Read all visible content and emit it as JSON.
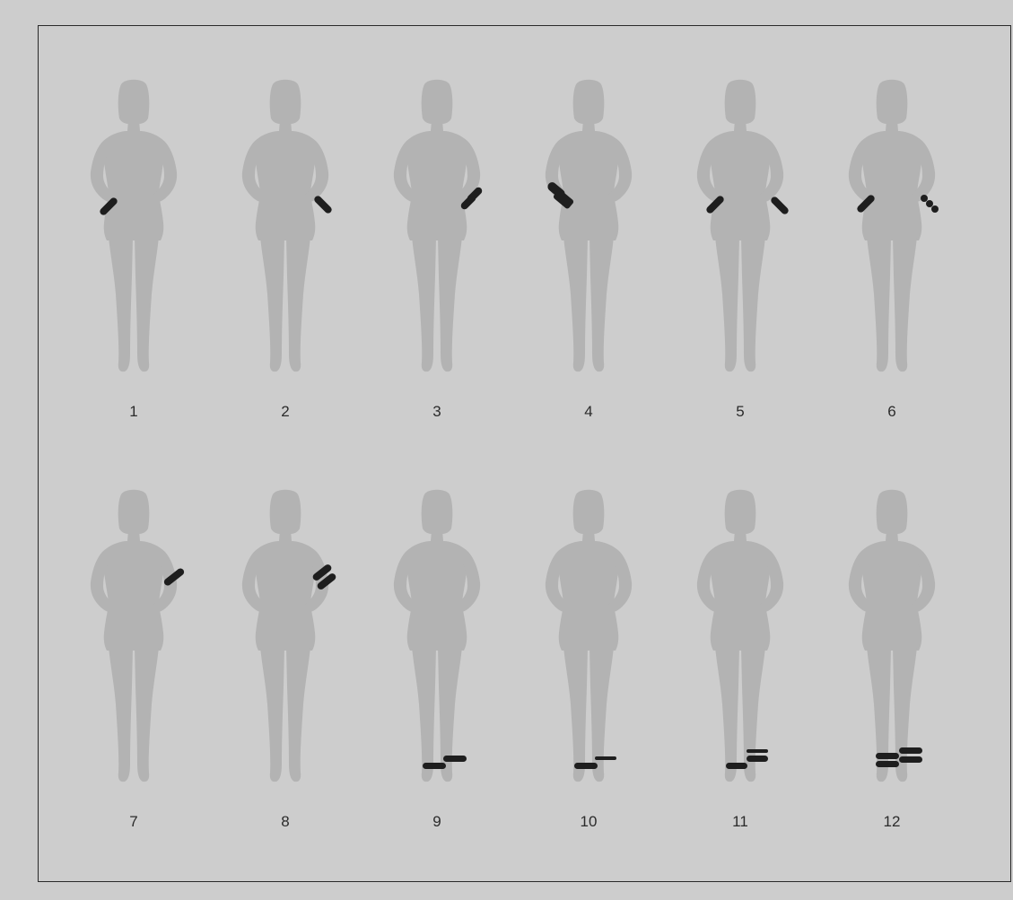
{
  "figures": [
    {
      "label": "1",
      "placement": "one band, right hip (viewer's left)"
    },
    {
      "label": "2",
      "placement": "one band, left hip (viewer's right)"
    },
    {
      "label": "3",
      "placement": "two bands, left hip (viewer's right)"
    },
    {
      "label": "4",
      "placement": "two bands, right hip (viewer's left)"
    },
    {
      "label": "5",
      "placement": "one band on each hip"
    },
    {
      "label": "6",
      "placement": "band on right hip, dotted band on left hip"
    },
    {
      "label": "7",
      "placement": "one band, left upper arm"
    },
    {
      "label": "8",
      "placement": "two bands, left upper arm"
    },
    {
      "label": "9",
      "placement": "one band on each ankle"
    },
    {
      "label": "10",
      "placement": "band on right ankle, thin band on left ankle"
    },
    {
      "label": "11",
      "placement": "one band right ankle, two bands left ankle"
    },
    {
      "label": "12",
      "placement": "two bands on each ankle"
    }
  ],
  "colors": {
    "background": "#cdcdcd",
    "silhouette": "#b3b3b3",
    "band": "#1e1e1e",
    "frame": "#2a2a2a",
    "label": "#2b2b2b"
  }
}
